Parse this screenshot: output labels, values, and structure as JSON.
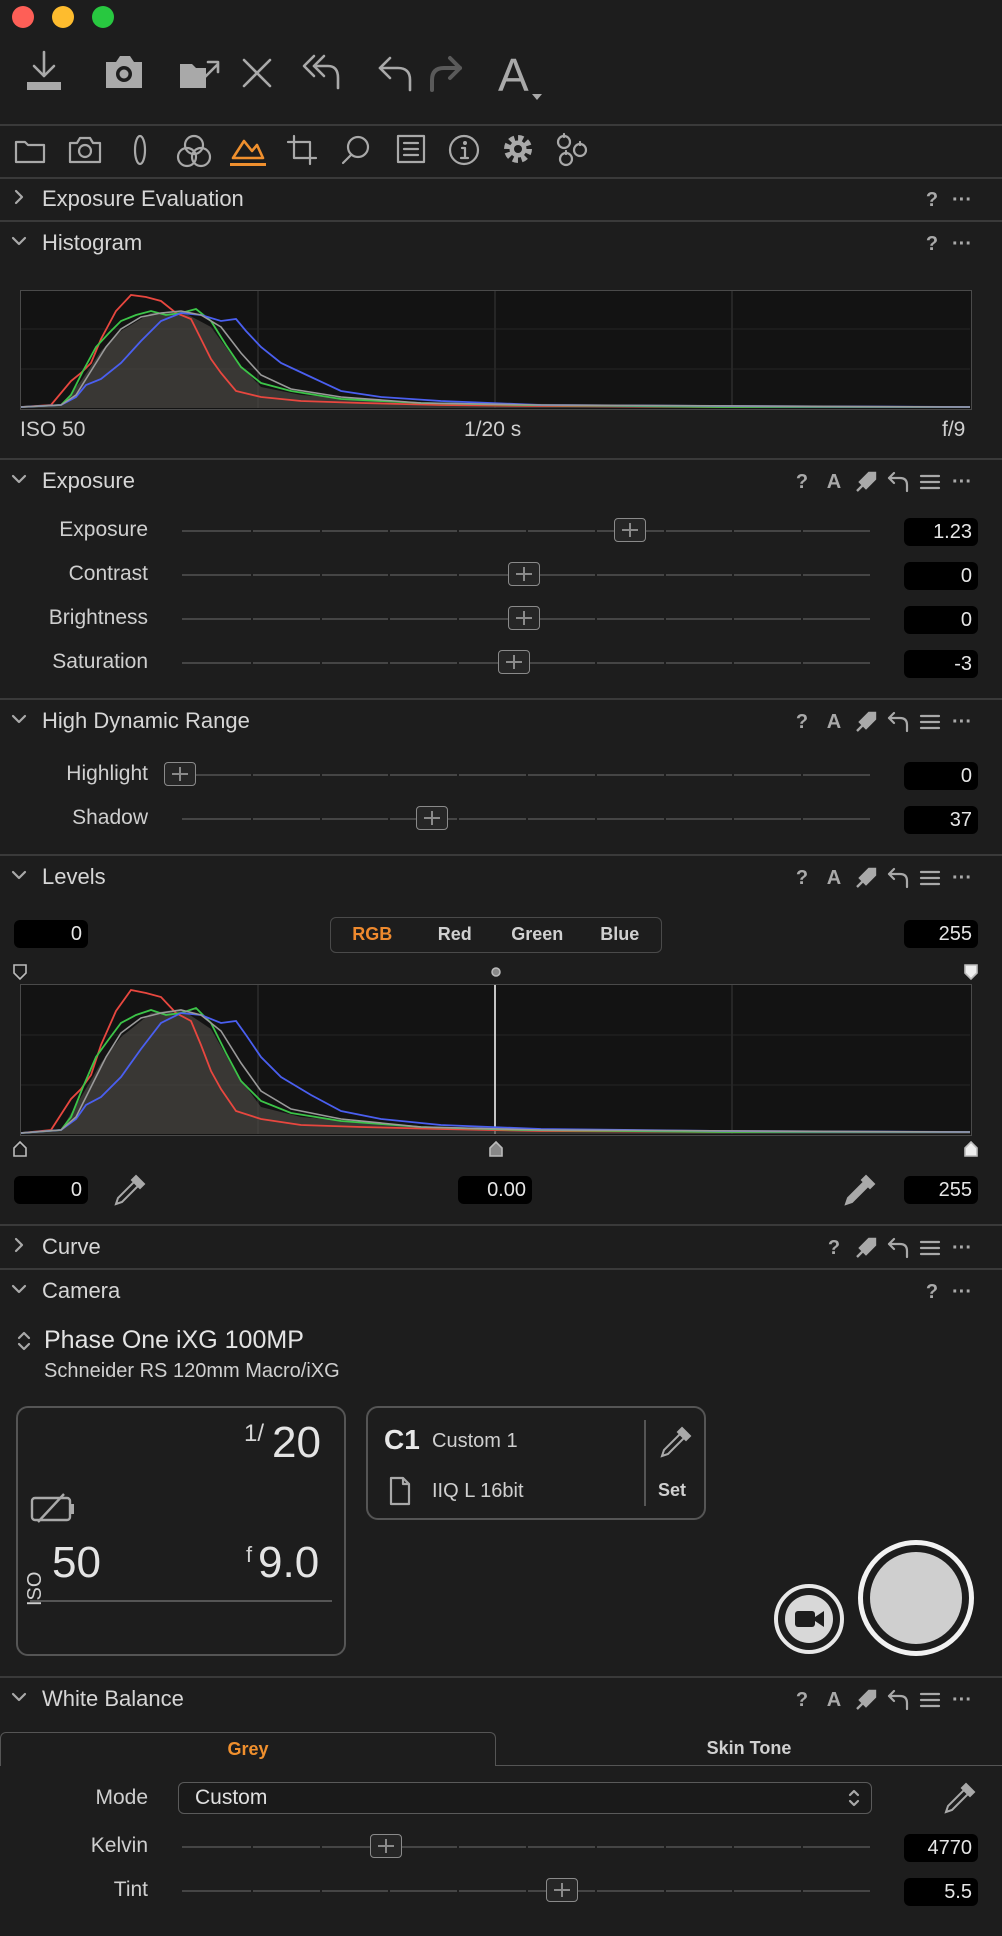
{
  "window": {
    "controls": [
      "close",
      "minimize",
      "zoom"
    ],
    "colors": {
      "close": "#fe5f57",
      "minimize": "#febc2e",
      "zoom": "#28c840",
      "accent": "#f0902e"
    }
  },
  "toolbar": {
    "icons": [
      "import-icon",
      "camera-icon",
      "export-icon",
      "delete-icon",
      "undo-all-icon",
      "undo-icon",
      "redo-icon",
      "auto-adjust-icon"
    ],
    "auto_label": "A"
  },
  "tool_tabs": {
    "active": "exposure-tab",
    "icons": [
      "library-tab",
      "capture-tab",
      "lens-tab",
      "color-tab",
      "exposure-tab",
      "crop-tab",
      "focus-tab",
      "metadata-tab",
      "info-tab",
      "settings-tab",
      "adjustments-tab"
    ]
  },
  "exposure_evaluation": {
    "title": "Exposure Evaluation"
  },
  "histogram": {
    "title": "Histogram",
    "iso": "ISO 50",
    "shutter": "1/20 s",
    "aperture": "f/9"
  },
  "exposure": {
    "title": "Exposure",
    "sliders": [
      {
        "label": "Exposure",
        "value": "1.23",
        "position": 0.655
      },
      {
        "label": "Contrast",
        "value": "0",
        "position": 0.5
      },
      {
        "label": "Brightness",
        "value": "0",
        "position": 0.5
      },
      {
        "label": "Saturation",
        "value": "-3",
        "position": 0.485
      }
    ]
  },
  "hdr": {
    "title": "High Dynamic Range",
    "sliders": [
      {
        "label": "Highlight",
        "value": "0",
        "position": 0.0
      },
      {
        "label": "Shadow",
        "value": "37",
        "position": 0.37
      }
    ]
  },
  "levels": {
    "title": "Levels",
    "input_black": "0",
    "input_white": "255",
    "channels": [
      "RGB",
      "Red",
      "Green",
      "Blue"
    ],
    "active_channel": "RGB",
    "output_black": "0",
    "midtone": "0.00",
    "output_white": "255"
  },
  "curve": {
    "title": "Curve"
  },
  "camera": {
    "title": "Camera",
    "model": "Phase One iXG 100MP",
    "lens": "Schneider RS 120mm Macro/iXG",
    "shutter_num": "1/",
    "shutter_den": "20",
    "iso_label": "ISO",
    "iso_value": "50",
    "aperture_prefix": "f",
    "aperture_value": "9.0",
    "preset_id": "C1",
    "preset_name": "Custom 1",
    "format": "IIQ L 16bit",
    "set_label": "Set"
  },
  "white_balance": {
    "title": "White Balance",
    "tabs": [
      "Grey",
      "Skin Tone"
    ],
    "active_tab": "Grey",
    "mode_label": "Mode",
    "mode_value": "Custom",
    "sliders": [
      {
        "label": "Kelvin",
        "value": "4770",
        "position": 0.3
      },
      {
        "label": "Tint",
        "value": "5.5",
        "position": 0.55
      }
    ]
  }
}
